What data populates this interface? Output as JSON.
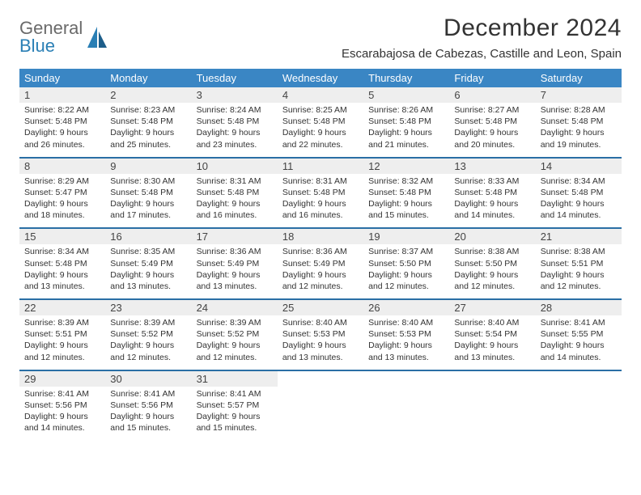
{
  "brand": {
    "word1": "General",
    "word2": "Blue",
    "logo_color_gray": "#6a6a6a",
    "logo_color_blue": "#2a7fb5"
  },
  "title": "December 2024",
  "location": "Escarabajosa de Cabezas, Castille and Leon, Spain",
  "colors": {
    "header_bg": "#3a86c4",
    "header_text": "#ffffff",
    "daynum_bg": "#eeeeee",
    "week_sep": "#2a6fa5",
    "body_text": "#333333"
  },
  "day_headers": [
    "Sunday",
    "Monday",
    "Tuesday",
    "Wednesday",
    "Thursday",
    "Friday",
    "Saturday"
  ],
  "weeks": [
    [
      {
        "n": "1",
        "sunrise": "Sunrise: 8:22 AM",
        "sunset": "Sunset: 5:48 PM",
        "dl1": "Daylight: 9 hours",
        "dl2": "and 26 minutes."
      },
      {
        "n": "2",
        "sunrise": "Sunrise: 8:23 AM",
        "sunset": "Sunset: 5:48 PM",
        "dl1": "Daylight: 9 hours",
        "dl2": "and 25 minutes."
      },
      {
        "n": "3",
        "sunrise": "Sunrise: 8:24 AM",
        "sunset": "Sunset: 5:48 PM",
        "dl1": "Daylight: 9 hours",
        "dl2": "and 23 minutes."
      },
      {
        "n": "4",
        "sunrise": "Sunrise: 8:25 AM",
        "sunset": "Sunset: 5:48 PM",
        "dl1": "Daylight: 9 hours",
        "dl2": "and 22 minutes."
      },
      {
        "n": "5",
        "sunrise": "Sunrise: 8:26 AM",
        "sunset": "Sunset: 5:48 PM",
        "dl1": "Daylight: 9 hours",
        "dl2": "and 21 minutes."
      },
      {
        "n": "6",
        "sunrise": "Sunrise: 8:27 AM",
        "sunset": "Sunset: 5:48 PM",
        "dl1": "Daylight: 9 hours",
        "dl2": "and 20 minutes."
      },
      {
        "n": "7",
        "sunrise": "Sunrise: 8:28 AM",
        "sunset": "Sunset: 5:48 PM",
        "dl1": "Daylight: 9 hours",
        "dl2": "and 19 minutes."
      }
    ],
    [
      {
        "n": "8",
        "sunrise": "Sunrise: 8:29 AM",
        "sunset": "Sunset: 5:47 PM",
        "dl1": "Daylight: 9 hours",
        "dl2": "and 18 minutes."
      },
      {
        "n": "9",
        "sunrise": "Sunrise: 8:30 AM",
        "sunset": "Sunset: 5:48 PM",
        "dl1": "Daylight: 9 hours",
        "dl2": "and 17 minutes."
      },
      {
        "n": "10",
        "sunrise": "Sunrise: 8:31 AM",
        "sunset": "Sunset: 5:48 PM",
        "dl1": "Daylight: 9 hours",
        "dl2": "and 16 minutes."
      },
      {
        "n": "11",
        "sunrise": "Sunrise: 8:31 AM",
        "sunset": "Sunset: 5:48 PM",
        "dl1": "Daylight: 9 hours",
        "dl2": "and 16 minutes."
      },
      {
        "n": "12",
        "sunrise": "Sunrise: 8:32 AM",
        "sunset": "Sunset: 5:48 PM",
        "dl1": "Daylight: 9 hours",
        "dl2": "and 15 minutes."
      },
      {
        "n": "13",
        "sunrise": "Sunrise: 8:33 AM",
        "sunset": "Sunset: 5:48 PM",
        "dl1": "Daylight: 9 hours",
        "dl2": "and 14 minutes."
      },
      {
        "n": "14",
        "sunrise": "Sunrise: 8:34 AM",
        "sunset": "Sunset: 5:48 PM",
        "dl1": "Daylight: 9 hours",
        "dl2": "and 14 minutes."
      }
    ],
    [
      {
        "n": "15",
        "sunrise": "Sunrise: 8:34 AM",
        "sunset": "Sunset: 5:48 PM",
        "dl1": "Daylight: 9 hours",
        "dl2": "and 13 minutes."
      },
      {
        "n": "16",
        "sunrise": "Sunrise: 8:35 AM",
        "sunset": "Sunset: 5:49 PM",
        "dl1": "Daylight: 9 hours",
        "dl2": "and 13 minutes."
      },
      {
        "n": "17",
        "sunrise": "Sunrise: 8:36 AM",
        "sunset": "Sunset: 5:49 PM",
        "dl1": "Daylight: 9 hours",
        "dl2": "and 13 minutes."
      },
      {
        "n": "18",
        "sunrise": "Sunrise: 8:36 AM",
        "sunset": "Sunset: 5:49 PM",
        "dl1": "Daylight: 9 hours",
        "dl2": "and 12 minutes."
      },
      {
        "n": "19",
        "sunrise": "Sunrise: 8:37 AM",
        "sunset": "Sunset: 5:50 PM",
        "dl1": "Daylight: 9 hours",
        "dl2": "and 12 minutes."
      },
      {
        "n": "20",
        "sunrise": "Sunrise: 8:38 AM",
        "sunset": "Sunset: 5:50 PM",
        "dl1": "Daylight: 9 hours",
        "dl2": "and 12 minutes."
      },
      {
        "n": "21",
        "sunrise": "Sunrise: 8:38 AM",
        "sunset": "Sunset: 5:51 PM",
        "dl1": "Daylight: 9 hours",
        "dl2": "and 12 minutes."
      }
    ],
    [
      {
        "n": "22",
        "sunrise": "Sunrise: 8:39 AM",
        "sunset": "Sunset: 5:51 PM",
        "dl1": "Daylight: 9 hours",
        "dl2": "and 12 minutes."
      },
      {
        "n": "23",
        "sunrise": "Sunrise: 8:39 AM",
        "sunset": "Sunset: 5:52 PM",
        "dl1": "Daylight: 9 hours",
        "dl2": "and 12 minutes."
      },
      {
        "n": "24",
        "sunrise": "Sunrise: 8:39 AM",
        "sunset": "Sunset: 5:52 PM",
        "dl1": "Daylight: 9 hours",
        "dl2": "and 12 minutes."
      },
      {
        "n": "25",
        "sunrise": "Sunrise: 8:40 AM",
        "sunset": "Sunset: 5:53 PM",
        "dl1": "Daylight: 9 hours",
        "dl2": "and 13 minutes."
      },
      {
        "n": "26",
        "sunrise": "Sunrise: 8:40 AM",
        "sunset": "Sunset: 5:53 PM",
        "dl1": "Daylight: 9 hours",
        "dl2": "and 13 minutes."
      },
      {
        "n": "27",
        "sunrise": "Sunrise: 8:40 AM",
        "sunset": "Sunset: 5:54 PM",
        "dl1": "Daylight: 9 hours",
        "dl2": "and 13 minutes."
      },
      {
        "n": "28",
        "sunrise": "Sunrise: 8:41 AM",
        "sunset": "Sunset: 5:55 PM",
        "dl1": "Daylight: 9 hours",
        "dl2": "and 14 minutes."
      }
    ],
    [
      {
        "n": "29",
        "sunrise": "Sunrise: 8:41 AM",
        "sunset": "Sunset: 5:56 PM",
        "dl1": "Daylight: 9 hours",
        "dl2": "and 14 minutes."
      },
      {
        "n": "30",
        "sunrise": "Sunrise: 8:41 AM",
        "sunset": "Sunset: 5:56 PM",
        "dl1": "Daylight: 9 hours",
        "dl2": "and 15 minutes."
      },
      {
        "n": "31",
        "sunrise": "Sunrise: 8:41 AM",
        "sunset": "Sunset: 5:57 PM",
        "dl1": "Daylight: 9 hours",
        "dl2": "and 15 minutes."
      },
      null,
      null,
      null,
      null
    ]
  ]
}
